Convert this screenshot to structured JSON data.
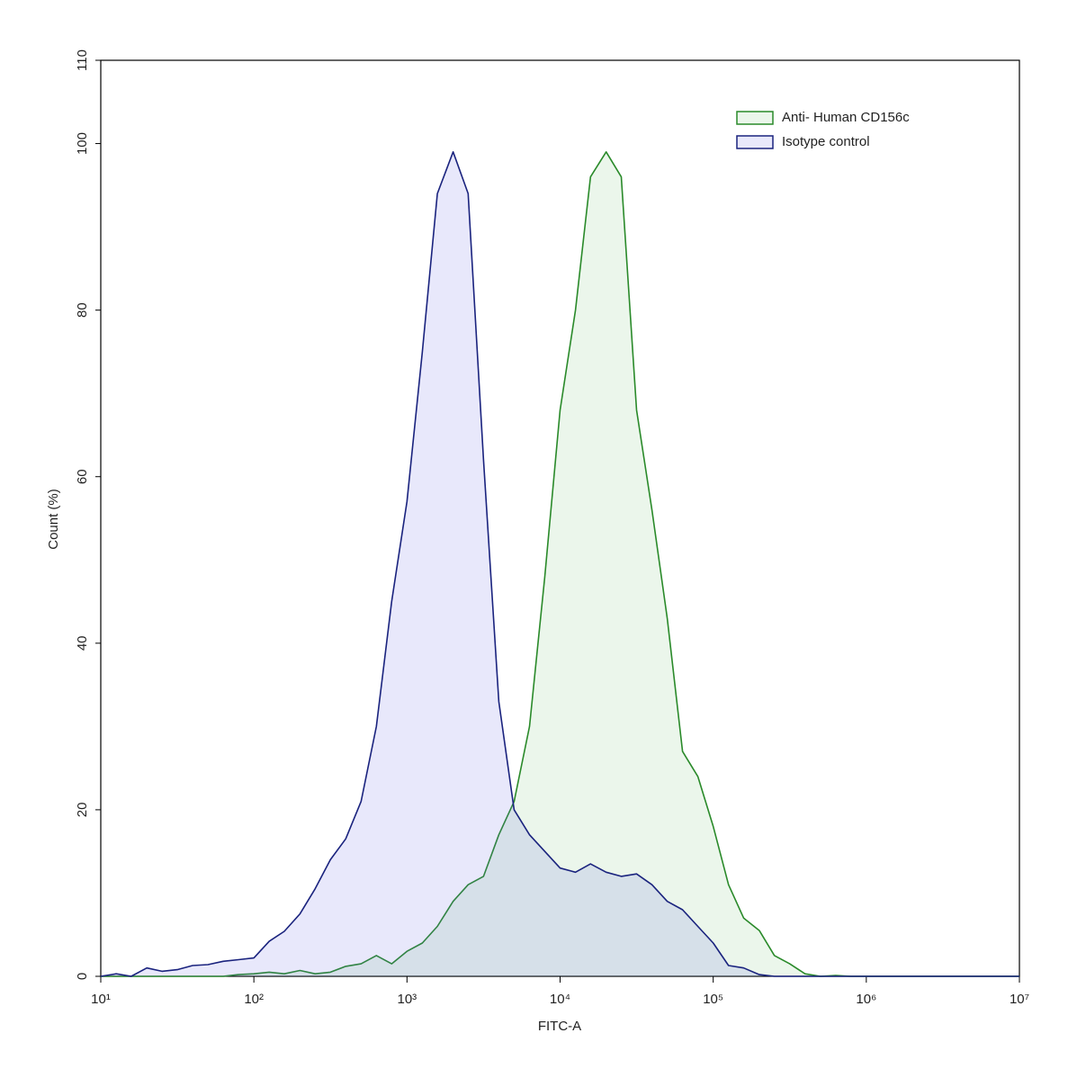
{
  "chart_data": {
    "type": "area",
    "xlabel": "FITC-A",
    "ylabel": "Count (%)",
    "xscale": "log",
    "legend": "upper right",
    "grid": false,
    "xlim": [
      10,
      10000000
    ],
    "xticks": [
      {
        "value": 10,
        "label": "10¹"
      },
      {
        "value": 100,
        "label": "10²"
      },
      {
        "value": 1000,
        "label": "10³"
      },
      {
        "value": 10000,
        "label": "10⁴"
      },
      {
        "value": 100000,
        "label": "10⁵"
      },
      {
        "value": 1000000,
        "label": "10⁶"
      },
      {
        "value": 10000000,
        "label": "10⁷"
      }
    ],
    "ylim": [
      0,
      110
    ],
    "yticks": [
      0,
      20,
      40,
      60,
      80,
      100,
      110
    ],
    "x": [
      10,
      12.6,
      15.8,
      20,
      25.1,
      31.6,
      39.8,
      50.1,
      63.1,
      79.4,
      100,
      126,
      158,
      200,
      251,
      316,
      398,
      501,
      631,
      794,
      1000,
      1260,
      1580,
      2000,
      2510,
      3160,
      3980,
      5010,
      6310,
      7940,
      10000,
      12600,
      15800,
      20000,
      25100,
      31600,
      39800,
      50100,
      63100,
      79400,
      100000,
      126000,
      158000,
      200000,
      251000,
      316000,
      398000,
      501000,
      631000,
      794000,
      1000000,
      1260000,
      1580000,
      2000000,
      2510000,
      3160000,
      3980000,
      5010000,
      6310000,
      7940000,
      10000000
    ],
    "series": [
      {
        "name": "Anti- Human CD156c",
        "color": "#2a8a2a",
        "values": [
          0,
          0,
          0,
          0,
          0,
          0,
          0,
          0,
          0,
          0.2,
          0.3,
          0.5,
          0.3,
          0.7,
          0.3,
          0.5,
          1.2,
          1.5,
          2.5,
          1.5,
          3,
          4,
          6,
          9,
          11,
          12,
          17,
          21,
          30,
          48,
          68,
          80,
          96,
          99,
          96,
          68,
          56,
          43,
          27,
          24,
          18,
          11,
          7,
          5.5,
          2.5,
          1.5,
          0.3,
          0,
          0.1,
          0,
          0,
          0,
          0,
          0,
          0,
          0,
          0,
          0,
          0,
          0,
          0
        ]
      },
      {
        "name": "Isotype control",
        "color": "#1a237e",
        "values": [
          0,
          0.3,
          0,
          1,
          0.6,
          0.8,
          1.3,
          1.4,
          1.8,
          2,
          2.2,
          4.2,
          5.4,
          7.5,
          10.5,
          14,
          16.5,
          21,
          30,
          45,
          57,
          75,
          94,
          99,
          94,
          62,
          33,
          20,
          17,
          15,
          13,
          12.5,
          13.5,
          12.5,
          12,
          12.3,
          11,
          9,
          8,
          6,
          4,
          1.3,
          1,
          0.2,
          0,
          0,
          0,
          0,
          0,
          0,
          0,
          0,
          0,
          0,
          0,
          0,
          0,
          0,
          0,
          0,
          0
        ]
      }
    ]
  }
}
